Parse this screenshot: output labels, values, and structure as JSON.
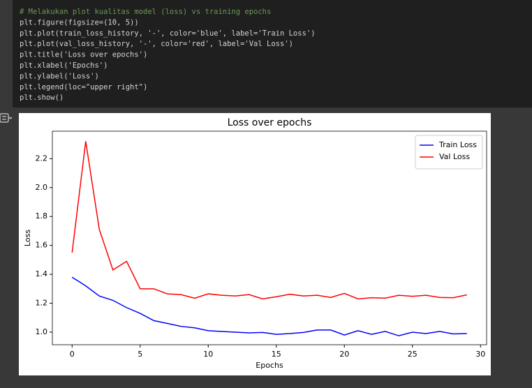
{
  "code_lines": [
    "# Melakukan plot kualitas model (loss) vs training epochs",
    "plt.figure(figsize=(10, 5))",
    "plt.plot(train_loss_history, '-', color='blue', label='Train Loss')",
    "plt.plot(val_loss_history, '-', color='red', label='Val Loss')",
    "plt.title('Loss over epochs')",
    "plt.xlabel('Epochs')",
    "plt.ylabel('Loss')",
    "plt.legend(loc=\"upper right\")",
    "plt.show()"
  ],
  "chart_data": {
    "type": "line",
    "title": "Loss over epochs",
    "x_label": "Epochs",
    "y_label": "Loss",
    "x": [
      0,
      1,
      2,
      3,
      4,
      5,
      6,
      7,
      8,
      9,
      10,
      11,
      12,
      13,
      14,
      15,
      16,
      17,
      18,
      19,
      20,
      21,
      22,
      23,
      24,
      25,
      26,
      27,
      28,
      29
    ],
    "series": [
      {
        "name": "Train Loss",
        "color": "blue",
        "values": [
          1.38,
          1.32,
          1.25,
          1.22,
          1.17,
          1.13,
          1.08,
          1.06,
          1.04,
          1.03,
          1.01,
          1.005,
          1.0,
          0.995,
          0.998,
          0.985,
          0.99,
          0.998,
          1.015,
          1.015,
          0.98,
          1.01,
          0.985,
          1.005,
          0.975,
          1.0,
          0.99,
          1.005,
          0.988,
          0.99
        ]
      },
      {
        "name": "Val Loss",
        "color": "red",
        "values": [
          1.55,
          2.32,
          1.71,
          1.43,
          1.49,
          1.3,
          1.3,
          1.265,
          1.26,
          1.235,
          1.265,
          1.255,
          1.25,
          1.26,
          1.23,
          1.245,
          1.262,
          1.25,
          1.255,
          1.24,
          1.268,
          1.23,
          1.238,
          1.235,
          1.255,
          1.248,
          1.255,
          1.24,
          1.238,
          1.258
        ]
      }
    ],
    "xlim": [
      -1.45,
      30.45
    ],
    "ylim": [
      0.913,
      2.39
    ],
    "xticks": [
      0,
      5,
      10,
      15,
      20,
      25,
      30
    ],
    "yticks": [
      {
        "value": 1,
        "label": "1.0"
      },
      1.2,
      1.4,
      1.6,
      1.8,
      {
        "value": 2,
        "label": "2.0"
      },
      2.2
    ],
    "legend": "upper right"
  }
}
